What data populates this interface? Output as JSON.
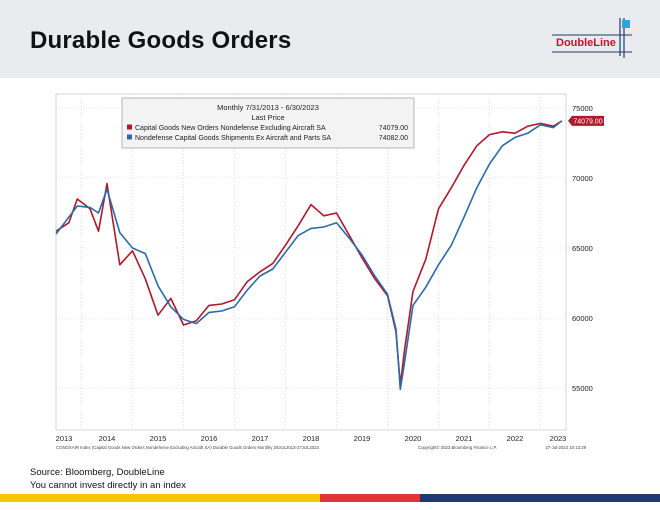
{
  "page": {
    "title": "Durable Goods Orders",
    "logo_text": "DoubleLine",
    "source": "Source: Bloomberg, DoubleLine",
    "disclaimer": "You cannot invest directly in an index"
  },
  "colors": {
    "orders": "#b0182b",
    "shipments": "#2c6aa8",
    "header_bg": "#e9ebee",
    "stripe_yellow": "#f7c600",
    "stripe_red": "#e0343d",
    "stripe_navy": "#1f3a6e"
  },
  "chart_data": {
    "type": "line",
    "legend": {
      "title": "Monthly 7/31/2013 - 6/30/2023",
      "subtitle": "Last Price",
      "placement": "top-left",
      "entries": [
        {
          "label": "Capital Goods New Orders Nondefense Excluding Aircraft SA",
          "value": "74079.00"
        },
        {
          "label": "Nondefense Capital Goods Shipments Ex Aircraft and Parts SA",
          "value": "74082.00"
        }
      ]
    },
    "last_value_label": "74079.00",
    "yticks": [
      55000,
      60000,
      65000,
      70000,
      75000
    ],
    "ylim": [
      52000,
      76000
    ],
    "xlim": [
      "2013-07",
      "2023-07"
    ],
    "xticks": [
      "2013",
      "2014",
      "2015",
      "2016",
      "2017",
      "2018",
      "2019",
      "2020",
      "2021",
      "2022",
      "2023"
    ],
    "grid": true,
    "footnote_left": "CGNOXAIR Index (Capital Goods New Orders Nondefense Excluding Aircraft SA) Durable Goods Orders Monthly 29JUL2013-27JUL2023",
    "footnote_mid": "Copyright© 2023 Bloomberg Finance L.P.",
    "footnote_right": "27-Jul-2023 10:13:29",
    "series": [
      {
        "name": "Capital Goods New Orders Nondefense Excluding Aircraft SA",
        "x": [
          "2013-07",
          "2013-10",
          "2013-12",
          "2014-03",
          "2014-05",
          "2014-07",
          "2014-10",
          "2015-01",
          "2015-04",
          "2015-07",
          "2015-10",
          "2016-01",
          "2016-04",
          "2016-07",
          "2016-10",
          "2017-01",
          "2017-04",
          "2017-07",
          "2017-10",
          "2018-01",
          "2018-04",
          "2018-07",
          "2018-10",
          "2019-01",
          "2019-04",
          "2019-07",
          "2019-10",
          "2020-01",
          "2020-03",
          "2020-04",
          "2020-05",
          "2020-07",
          "2020-10",
          "2021-01",
          "2021-04",
          "2021-07",
          "2021-10",
          "2022-01",
          "2022-04",
          "2022-07",
          "2022-10",
          "2023-01",
          "2023-04",
          "2023-06"
        ],
        "values": [
          66200,
          66800,
          68500,
          67800,
          66200,
          69600,
          63800,
          64800,
          62800,
          60200,
          61400,
          59500,
          59800,
          60900,
          61000,
          61300,
          62600,
          63300,
          63900,
          65200,
          66600,
          68100,
          67300,
          67500,
          65900,
          64300,
          62800,
          61600,
          59000,
          55200,
          57700,
          61900,
          64200,
          67800,
          69300,
          70900,
          72300,
          73100,
          73300,
          73200,
          73700,
          73900,
          73700,
          74079
        ]
      },
      {
        "name": "Nondefense Capital Goods Shipments Ex Aircraft and Parts SA",
        "x": [
          "2013-07",
          "2013-10",
          "2013-12",
          "2014-03",
          "2014-05",
          "2014-07",
          "2014-10",
          "2015-01",
          "2015-04",
          "2015-07",
          "2015-10",
          "2016-01",
          "2016-04",
          "2016-07",
          "2016-10",
          "2017-01",
          "2017-04",
          "2017-07",
          "2017-10",
          "2018-01",
          "2018-04",
          "2018-07",
          "2018-10",
          "2019-01",
          "2019-04",
          "2019-07",
          "2019-10",
          "2020-01",
          "2020-03",
          "2020-04",
          "2020-05",
          "2020-07",
          "2020-10",
          "2021-01",
          "2021-04",
          "2021-07",
          "2021-10",
          "2022-01",
          "2022-04",
          "2022-07",
          "2022-10",
          "2023-01",
          "2023-04",
          "2023-06"
        ],
        "values": [
          66000,
          67200,
          68000,
          67900,
          67500,
          69200,
          66100,
          65000,
          64600,
          62300,
          60800,
          59900,
          59600,
          60400,
          60500,
          60800,
          62000,
          63000,
          63500,
          64700,
          65900,
          66400,
          66500,
          66800,
          65700,
          64500,
          63000,
          61700,
          59200,
          54900,
          56800,
          60900,
          62200,
          63800,
          65200,
          67200,
          69300,
          71000,
          72300,
          72900,
          73200,
          73800,
          73600,
          74082
        ]
      }
    ]
  }
}
